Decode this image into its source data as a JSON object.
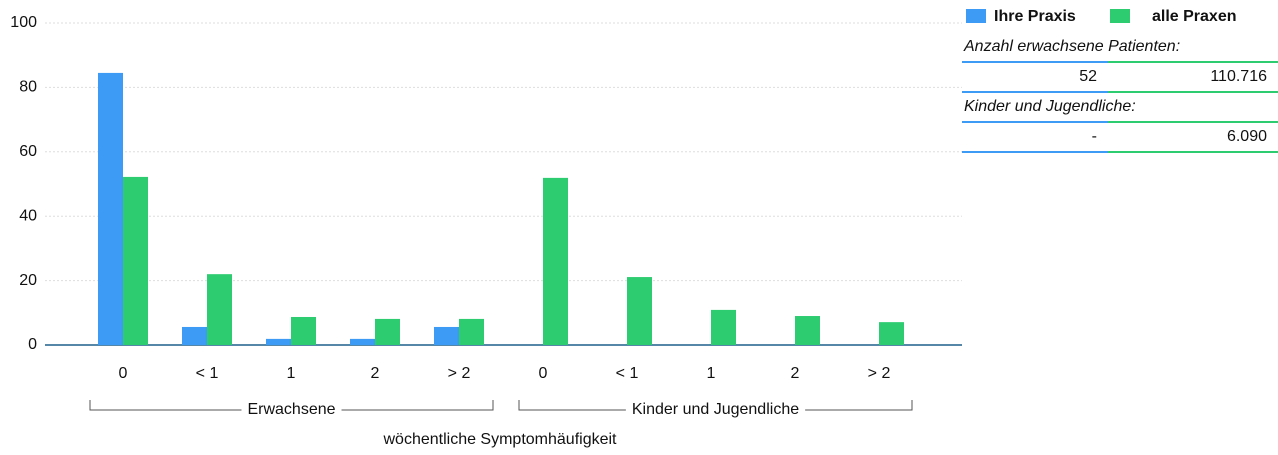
{
  "chart_data": {
    "type": "bar",
    "categories": [
      "0",
      "< 1",
      "1",
      "2",
      "> 2",
      "0",
      "< 1",
      "1",
      "2",
      "> 2"
    ],
    "groups": [
      "Erwachsene",
      "Kinder und Jugendliche"
    ],
    "x_label": "wöchentliche Symptomhäufigkeit",
    "series": [
      {
        "name": "Ihre Praxis",
        "color": "#3d9bf5",
        "values": [
          84.5,
          5.6,
          1.9,
          1.9,
          5.6,
          null,
          null,
          null,
          null,
          null
        ]
      },
      {
        "name": "alle Praxen",
        "color": "#2ecc71",
        "values": [
          52.2,
          22,
          8.7,
          8.1,
          8.1,
          51.9,
          21.1,
          10.9,
          9,
          7.1
        ]
      }
    ],
    "ylim": [
      0,
      100
    ],
    "yticks": [
      0,
      20,
      40,
      60,
      80,
      100
    ],
    "grid": true,
    "info_table": [
      {
        "label": "Anzahl erwachsene Patienten:",
        "values": [
          "52",
          "110.716"
        ]
      },
      {
        "label": "Kinder und Jugendliche:",
        "values": [
          "-",
          "6.090"
        ]
      }
    ]
  }
}
